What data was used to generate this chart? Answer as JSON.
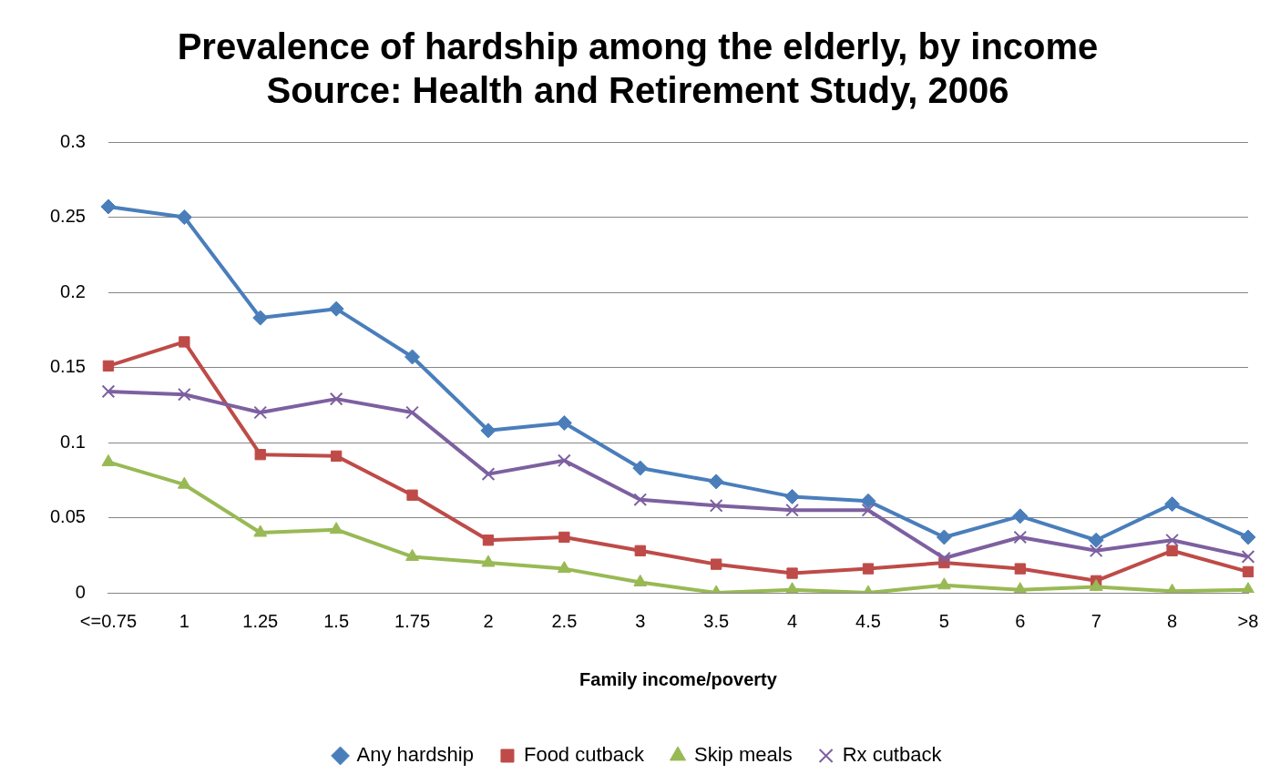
{
  "chart_data": {
    "type": "line",
    "title": "Prevalence of hardship among the elderly, by income",
    "subtitle": "Source: Health and Retirement Study, 2006",
    "xlabel": "Family income/poverty",
    "categories": [
      "<=0.75",
      "1",
      "1.25",
      "1.5",
      "1.75",
      "2",
      "2.5",
      "3",
      "3.5",
      "4",
      "4.5",
      "5",
      "6",
      "7",
      "8",
      ">8"
    ],
    "series": [
      {
        "name": "Any hardship",
        "color": "#4a7ebb",
        "marker": "diamond",
        "values": [
          0.257,
          0.25,
          0.183,
          0.189,
          0.157,
          0.108,
          0.113,
          0.083,
          0.074,
          0.064,
          0.061,
          0.037,
          0.051,
          0.035,
          0.059,
          0.037
        ]
      },
      {
        "name": "Food cutback",
        "color": "#be4b48",
        "marker": "square",
        "values": [
          0.151,
          0.167,
          0.092,
          0.091,
          0.065,
          0.035,
          0.037,
          0.028,
          0.019,
          0.013,
          0.016,
          0.02,
          0.016,
          0.008,
          0.028,
          0.014
        ]
      },
      {
        "name": "Skip meals",
        "color": "#98b954",
        "marker": "triangle",
        "values": [
          0.087,
          0.072,
          0.04,
          0.042,
          0.024,
          0.02,
          0.016,
          0.007,
          0,
          0.002,
          0,
          0.005,
          0.002,
          0.004,
          0.001,
          0.002
        ]
      },
      {
        "name": "Rx cutback",
        "color": "#7d60a0",
        "marker": "cross",
        "values": [
          0.134,
          0.132,
          0.12,
          0.129,
          0.12,
          0.079,
          0.088,
          0.062,
          0.058,
          0.055,
          0.055,
          0.023,
          0.037,
          0.028,
          0.035,
          0.024
        ]
      }
    ],
    "ylim": [
      0,
      0.3
    ],
    "yticks": [
      0,
      0.05,
      0.1,
      0.15,
      0.2,
      0.25,
      0.3
    ],
    "grid": "y",
    "legend": "bottom",
    "line_style": "solid"
  }
}
